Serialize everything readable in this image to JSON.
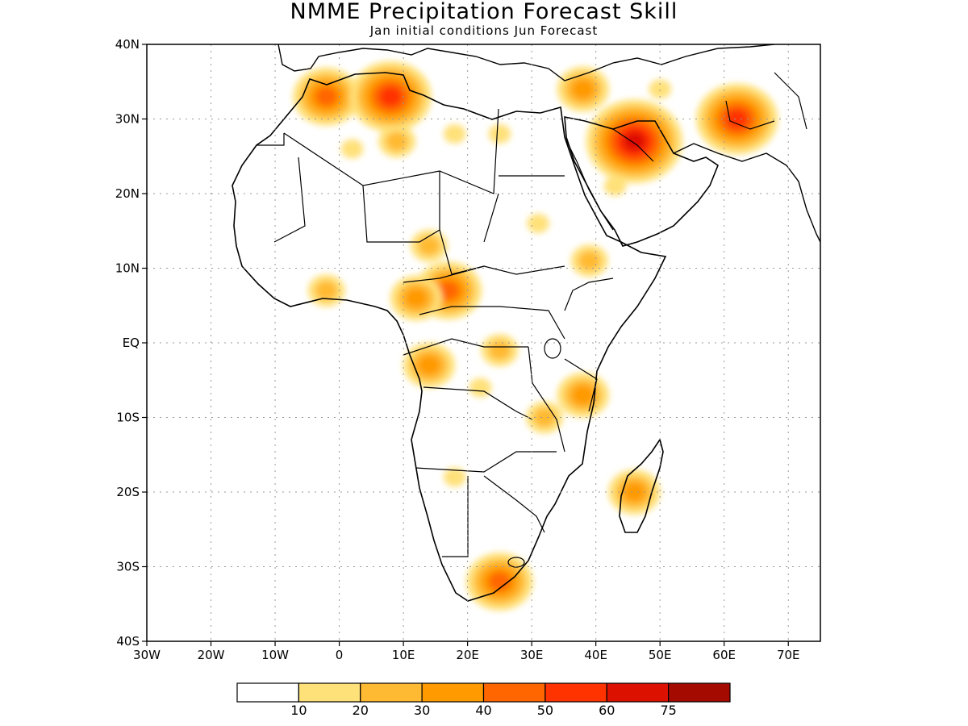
{
  "header": {
    "title": "NMME Precipitation Forecast Skill",
    "subtitle": "Jan initial conditions   Jun Forecast"
  },
  "axes": {
    "x_ticks": [
      "30W",
      "20W",
      "10W",
      "0",
      "10E",
      "20E",
      "30E",
      "40E",
      "50E",
      "60E",
      "70E"
    ],
    "y_ticks": [
      "40N",
      "30N",
      "20N",
      "10N",
      "EQ",
      "10S",
      "20S",
      "30S",
      "40S"
    ],
    "lon_range": [
      -30,
      75
    ],
    "lat_range": [
      -40,
      40
    ],
    "grid": "dotted"
  },
  "colorbar": {
    "colors": [
      "#ffffff",
      "#ffe17a",
      "#ffba33",
      "#ff9a00",
      "#ff6600",
      "#ff3300",
      "#dd1100",
      "#a50a00"
    ],
    "labels": [
      "10",
      "20",
      "30",
      "40",
      "50",
      "60",
      "75"
    ]
  },
  "skill_regions": [
    {
      "lon": -2,
      "lat": 33,
      "level": 4
    },
    {
      "lon": 8,
      "lat": 33,
      "level": 5
    },
    {
      "lon": 9,
      "lat": 27,
      "level": 2
    },
    {
      "lon": 2,
      "lat": 26,
      "level": 1
    },
    {
      "lon": 18,
      "lat": 28,
      "level": 1
    },
    {
      "lon": 25,
      "lat": 28,
      "level": 1
    },
    {
      "lon": 38,
      "lat": 34,
      "level": 3
    },
    {
      "lon": 50,
      "lat": 34,
      "level": 1
    },
    {
      "lon": 62,
      "lat": 30,
      "level": 5
    },
    {
      "lon": 46,
      "lat": 27,
      "level": 6
    },
    {
      "lon": 43,
      "lat": 21,
      "level": 1
    },
    {
      "lon": 31,
      "lat": 16,
      "level": 1
    },
    {
      "lon": 14,
      "lat": 13,
      "level": 2
    },
    {
      "lon": 17,
      "lat": 7,
      "level": 4
    },
    {
      "lon": 12,
      "lat": 6,
      "level": 3
    },
    {
      "lon": -2,
      "lat": 7,
      "level": 2
    },
    {
      "lon": 39,
      "lat": 11,
      "level": 2
    },
    {
      "lon": 14,
      "lat": -3,
      "level": 3
    },
    {
      "lon": 25,
      "lat": -1,
      "level": 2
    },
    {
      "lon": 22,
      "lat": -6,
      "level": 1
    },
    {
      "lon": 38,
      "lat": -7,
      "level": 3
    },
    {
      "lon": 32,
      "lat": -10,
      "level": 2
    },
    {
      "lon": 46,
      "lat": -20,
      "level": 3
    },
    {
      "lon": 25,
      "lat": -32,
      "level": 4
    },
    {
      "lon": 18,
      "lat": -18,
      "level": 1
    }
  ]
}
